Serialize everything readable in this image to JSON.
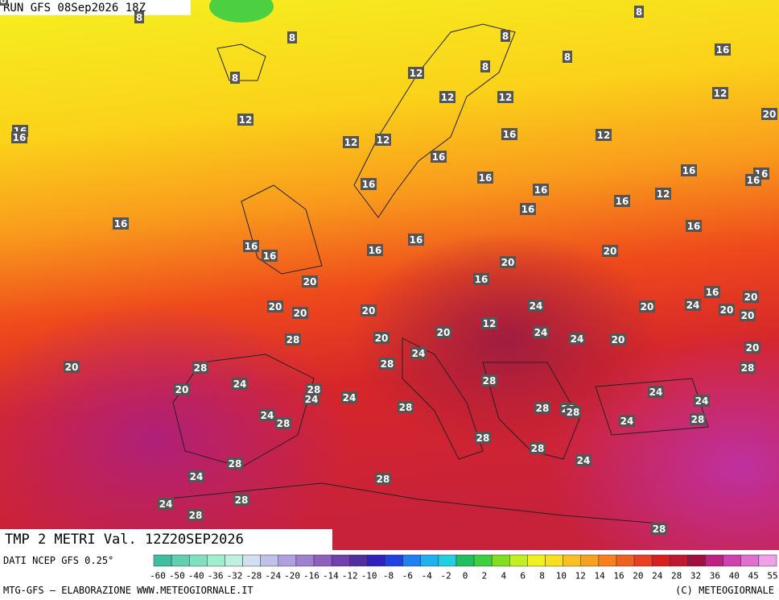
{
  "header": {
    "run": "RUN GFS 08Sep2026 18Z"
  },
  "map": {
    "title": "TMP 2 METRI Val. 12Z20SEP2026",
    "labels": [
      8,
      8,
      8,
      8,
      8,
      8,
      8,
      16,
      12,
      12,
      12,
      12,
      12,
      12,
      12,
      12,
      12,
      20,
      16,
      16,
      16,
      16,
      16,
      16,
      16,
      16,
      16,
      16,
      16,
      16,
      16,
      16,
      16,
      16,
      16,
      16,
      16,
      16,
      20,
      20,
      20,
      20,
      20,
      20,
      20,
      20,
      20,
      20,
      20,
      20,
      20,
      20,
      20,
      20,
      24,
      24,
      24,
      24,
      24,
      24,
      24,
      24,
      24,
      24,
      24,
      24,
      24,
      24,
      24,
      12,
      28,
      28,
      28,
      28,
      28,
      28,
      28,
      28,
      28,
      28,
      28,
      28,
      28,
      28,
      28,
      28,
      28,
      28,
      28,
      28,
      28
    ]
  },
  "legend": {
    "source": "DATI NCEP GFS 0.25°",
    "scale": [
      "-60",
      "-50",
      "-40",
      "-36",
      "-32",
      "-28",
      "-24",
      "-20",
      "-16",
      "-14",
      "-12",
      "-10",
      "-8",
      "-6",
      "-4",
      "-2",
      "0",
      "2",
      "4",
      "6",
      "8",
      "10",
      "12",
      "14",
      "16",
      "20",
      "24",
      "28",
      "32",
      "36",
      "40",
      "45",
      "55"
    ]
  },
  "footer": {
    "credit": "MTG-GFS — ELABORAZIONE WWW.METEOGIORNALE.IT",
    "copyright": "(C) METEOGIORNALE"
  }
}
